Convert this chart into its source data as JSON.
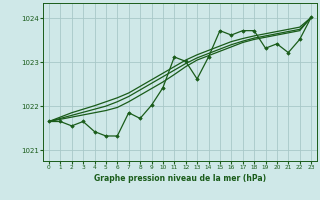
{
  "bg_color": "#cfe8e8",
  "grid_color": "#a8c8c8",
  "line_color": "#1a5c1a",
  "marker_color": "#1a5c1a",
  "title": "Graphe pression niveau de la mer (hPa)",
  "xlim": [
    -0.5,
    23.5
  ],
  "ylim": [
    1020.75,
    1024.35
  ],
  "yticks": [
    1021,
    1022,
    1023,
    1024
  ],
  "xticks": [
    0,
    1,
    2,
    3,
    4,
    5,
    6,
    7,
    8,
    9,
    10,
    11,
    12,
    13,
    14,
    15,
    16,
    17,
    18,
    19,
    20,
    21,
    22,
    23
  ],
  "main_line_x": [
    0,
    1,
    2,
    3,
    4,
    5,
    6,
    7,
    8,
    9,
    10,
    11,
    12,
    13,
    14,
    15,
    16,
    17,
    18,
    19,
    20,
    21,
    22,
    23
  ],
  "main_line_y": [
    1021.65,
    1021.65,
    1021.55,
    1021.65,
    1021.42,
    1021.32,
    1021.32,
    1021.85,
    1021.72,
    1022.02,
    1022.42,
    1023.12,
    1023.02,
    1022.62,
    1023.12,
    1023.72,
    1023.62,
    1023.72,
    1023.72,
    1023.32,
    1023.42,
    1023.22,
    1023.52,
    1024.02
  ],
  "trend_line1_y": [
    1021.65,
    1021.75,
    1021.85,
    1021.93,
    1022.01,
    1022.1,
    1022.19,
    1022.3,
    1022.45,
    1022.6,
    1022.75,
    1022.9,
    1023.05,
    1023.17,
    1023.27,
    1023.37,
    1023.47,
    1023.54,
    1023.6,
    1023.65,
    1023.7,
    1023.75,
    1023.8,
    1024.02
  ],
  "trend_line2_y": [
    1021.65,
    1021.72,
    1021.79,
    1021.86,
    1021.93,
    1022.0,
    1022.1,
    1022.22,
    1022.37,
    1022.52,
    1022.67,
    1022.82,
    1022.97,
    1023.1,
    1023.2,
    1023.3,
    1023.4,
    1023.48,
    1023.55,
    1023.6,
    1023.65,
    1023.7,
    1023.75,
    1024.02
  ],
  "trend_line3_y": [
    1021.65,
    1021.7,
    1021.75,
    1021.8,
    1021.85,
    1021.9,
    1021.97,
    1022.1,
    1022.25,
    1022.4,
    1022.55,
    1022.72,
    1022.9,
    1023.05,
    1023.15,
    1023.25,
    1023.35,
    1023.45,
    1023.52,
    1023.57,
    1023.62,
    1023.67,
    1023.72,
    1024.02
  ]
}
